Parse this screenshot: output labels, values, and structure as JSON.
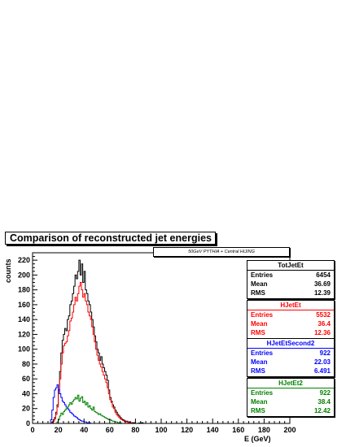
{
  "title": "Comparison of reconstructed jet energies",
  "subtitle": "50GeV PYTHIA + Central HIJING",
  "chart_data": {
    "type": "histogram",
    "xlabel": "E (GeV)",
    "ylabel": "counts",
    "xlim": [
      0,
      200
    ],
    "ylim": [
      0,
      230
    ],
    "xticks": [
      0,
      20,
      40,
      60,
      80,
      100,
      120,
      140,
      160,
      180,
      200
    ],
    "yticks": [
      0,
      20,
      40,
      60,
      80,
      100,
      120,
      140,
      160,
      180,
      200,
      220
    ],
    "bin_width": 1,
    "series": [
      {
        "name": "TotJetEt",
        "color": "#000000",
        "stats": {
          "header": "TotJetEt",
          "entries_label": "Entries",
          "entries": "6454",
          "mean_label": "Mean",
          "mean": "36.69",
          "rms_label": "RMS",
          "rms": "12.39"
        },
        "values": [
          [
            12,
            0
          ],
          [
            13,
            0
          ],
          [
            14,
            0
          ],
          [
            15,
            2
          ],
          [
            16,
            5
          ],
          [
            17,
            8
          ],
          [
            18,
            15
          ],
          [
            19,
            25
          ],
          [
            20,
            45
          ],
          [
            21,
            70
          ],
          [
            22,
            95
          ],
          [
            23,
            112
          ],
          [
            24,
            120
          ],
          [
            25,
            128
          ],
          [
            26,
            125
          ],
          [
            27,
            140
          ],
          [
            28,
            145
          ],
          [
            29,
            160
          ],
          [
            30,
            165
          ],
          [
            31,
            175
          ],
          [
            32,
            185
          ],
          [
            33,
            200
          ],
          [
            34,
            195
          ],
          [
            35,
            205
          ],
          [
            36,
            220
          ],
          [
            37,
            200
          ],
          [
            38,
            215
          ],
          [
            39,
            190
          ],
          [
            40,
            205
          ],
          [
            41,
            180
          ],
          [
            42,
            175
          ],
          [
            43,
            165
          ],
          [
            44,
            160
          ],
          [
            45,
            150
          ],
          [
            46,
            140
          ],
          [
            47,
            130
          ],
          [
            48,
            118
          ],
          [
            49,
            110
          ],
          [
            50,
            100
          ],
          [
            51,
            95
          ],
          [
            52,
            85
          ],
          [
            53,
            90
          ],
          [
            54,
            80
          ],
          [
            55,
            75
          ],
          [
            56,
            70
          ],
          [
            57,
            65
          ],
          [
            58,
            58
          ],
          [
            59,
            45
          ],
          [
            60,
            35
          ],
          [
            61,
            30
          ],
          [
            62,
            25
          ],
          [
            63,
            22
          ],
          [
            64,
            18
          ],
          [
            65,
            15
          ],
          [
            66,
            12
          ],
          [
            67,
            10
          ],
          [
            68,
            8
          ],
          [
            69,
            6
          ],
          [
            70,
            5
          ],
          [
            71,
            4
          ],
          [
            72,
            3
          ],
          [
            73,
            3
          ],
          [
            74,
            2
          ],
          [
            75,
            2
          ],
          [
            76,
            1
          ],
          [
            77,
            1
          ],
          [
            78,
            1
          ],
          [
            79,
            1
          ],
          [
            80,
            0
          ],
          [
            85,
            1
          ],
          [
            86,
            0
          ]
        ]
      },
      {
        "name": "HJetEt",
        "color": "#ff0000",
        "stats": {
          "header": "HJetEt",
          "entries_label": "Entries",
          "entries": "5532",
          "mean_label": "Mean",
          "mean": "36.4",
          "rms_label": "RMS",
          "rms": "12.36"
        },
        "values": [
          [
            14,
            0
          ],
          [
            15,
            1
          ],
          [
            16,
            3
          ],
          [
            17,
            6
          ],
          [
            18,
            12
          ],
          [
            19,
            22
          ],
          [
            20,
            40
          ],
          [
            21,
            60
          ],
          [
            22,
            80
          ],
          [
            23,
            95
          ],
          [
            24,
            105
          ],
          [
            25,
            108
          ],
          [
            26,
            110
          ],
          [
            27,
            118
          ],
          [
            28,
            125
          ],
          [
            29,
            138
          ],
          [
            30,
            142
          ],
          [
            31,
            150
          ],
          [
            32,
            160
          ],
          [
            33,
            170
          ],
          [
            34,
            165
          ],
          [
            35,
            175
          ],
          [
            36,
            185
          ],
          [
            37,
            190
          ],
          [
            38,
            180
          ],
          [
            39,
            170
          ],
          [
            40,
            175
          ],
          [
            41,
            165
          ],
          [
            42,
            160
          ],
          [
            43,
            150
          ],
          [
            44,
            145
          ],
          [
            45,
            140
          ],
          [
            46,
            130
          ],
          [
            47,
            120
          ],
          [
            48,
            110
          ],
          [
            49,
            100
          ],
          [
            50,
            92
          ],
          [
            51,
            85
          ],
          [
            52,
            80
          ],
          [
            53,
            76
          ],
          [
            54,
            70
          ],
          [
            55,
            65
          ],
          [
            56,
            60
          ],
          [
            57,
            55
          ],
          [
            58,
            48
          ],
          [
            59,
            40
          ],
          [
            60,
            32
          ],
          [
            61,
            28
          ],
          [
            62,
            22
          ],
          [
            63,
            20
          ],
          [
            64,
            15
          ],
          [
            65,
            12
          ],
          [
            66,
            10
          ],
          [
            67,
            8
          ],
          [
            68,
            6
          ],
          [
            69,
            5
          ],
          [
            70,
            4
          ],
          [
            71,
            3
          ],
          [
            72,
            2
          ],
          [
            73,
            2
          ],
          [
            74,
            1
          ],
          [
            75,
            1
          ],
          [
            76,
            1
          ],
          [
            77,
            0
          ]
        ]
      },
      {
        "name": "HJetEtSecond2",
        "color": "#0000ff",
        "stats": {
          "header": "HJetEtSecond2",
          "entries_label": "Entries",
          "entries": "922",
          "mean_label": "Mean",
          "mean": "22.03",
          "rms_label": "RMS",
          "rms": "6.491"
        },
        "values": [
          [
            13,
            0
          ],
          [
            14,
            5
          ],
          [
            15,
            18
          ],
          [
            16,
            35
          ],
          [
            17,
            45
          ],
          [
            18,
            48
          ],
          [
            19,
            52
          ],
          [
            20,
            45
          ],
          [
            21,
            40
          ],
          [
            22,
            35
          ],
          [
            23,
            30
          ],
          [
            24,
            28
          ],
          [
            25,
            25
          ],
          [
            26,
            22
          ],
          [
            27,
            20
          ],
          [
            28,
            18
          ],
          [
            29,
            15
          ],
          [
            30,
            14
          ],
          [
            31,
            12
          ],
          [
            32,
            10
          ],
          [
            33,
            9
          ],
          [
            34,
            8
          ],
          [
            35,
            6
          ],
          [
            36,
            5
          ],
          [
            37,
            4
          ],
          [
            38,
            3
          ],
          [
            39,
            3
          ],
          [
            40,
            2
          ],
          [
            41,
            2
          ],
          [
            42,
            1
          ],
          [
            43,
            1
          ],
          [
            44,
            1
          ],
          [
            45,
            0
          ]
        ]
      },
      {
        "name": "HJetEt2",
        "color": "#008000",
        "stats": {
          "header": "HJetEt2",
          "entries_label": "Entries",
          "entries": "922",
          "mean_label": "Mean",
          "mean": "38.4",
          "rms_label": "RMS",
          "rms": "12.42"
        },
        "values": [
          [
            18,
            0
          ],
          [
            19,
            2
          ],
          [
            20,
            5
          ],
          [
            21,
            10
          ],
          [
            22,
            14
          ],
          [
            23,
            12
          ],
          [
            24,
            16
          ],
          [
            25,
            18
          ],
          [
            26,
            20
          ],
          [
            27,
            22
          ],
          [
            28,
            25
          ],
          [
            29,
            28
          ],
          [
            30,
            26
          ],
          [
            31,
            30
          ],
          [
            32,
            32
          ],
          [
            33,
            35
          ],
          [
            34,
            33
          ],
          [
            35,
            38
          ],
          [
            36,
            30
          ],
          [
            37,
            34
          ],
          [
            38,
            36
          ],
          [
            39,
            28
          ],
          [
            40,
            30
          ],
          [
            41,
            25
          ],
          [
            42,
            28
          ],
          [
            43,
            22
          ],
          [
            44,
            24
          ],
          [
            45,
            20
          ],
          [
            46,
            18
          ],
          [
            47,
            22
          ],
          [
            48,
            16
          ],
          [
            49,
            15
          ],
          [
            50,
            14
          ],
          [
            51,
            12
          ],
          [
            52,
            13
          ],
          [
            53,
            11
          ],
          [
            54,
            10
          ],
          [
            55,
            9
          ],
          [
            56,
            8
          ],
          [
            57,
            7
          ],
          [
            58,
            6
          ],
          [
            59,
            5
          ],
          [
            60,
            5
          ],
          [
            61,
            4
          ],
          [
            62,
            3
          ],
          [
            63,
            3
          ],
          [
            64,
            2
          ],
          [
            65,
            2
          ],
          [
            66,
            1
          ],
          [
            67,
            1
          ],
          [
            68,
            1
          ],
          [
            69,
            0
          ]
        ]
      }
    ]
  }
}
